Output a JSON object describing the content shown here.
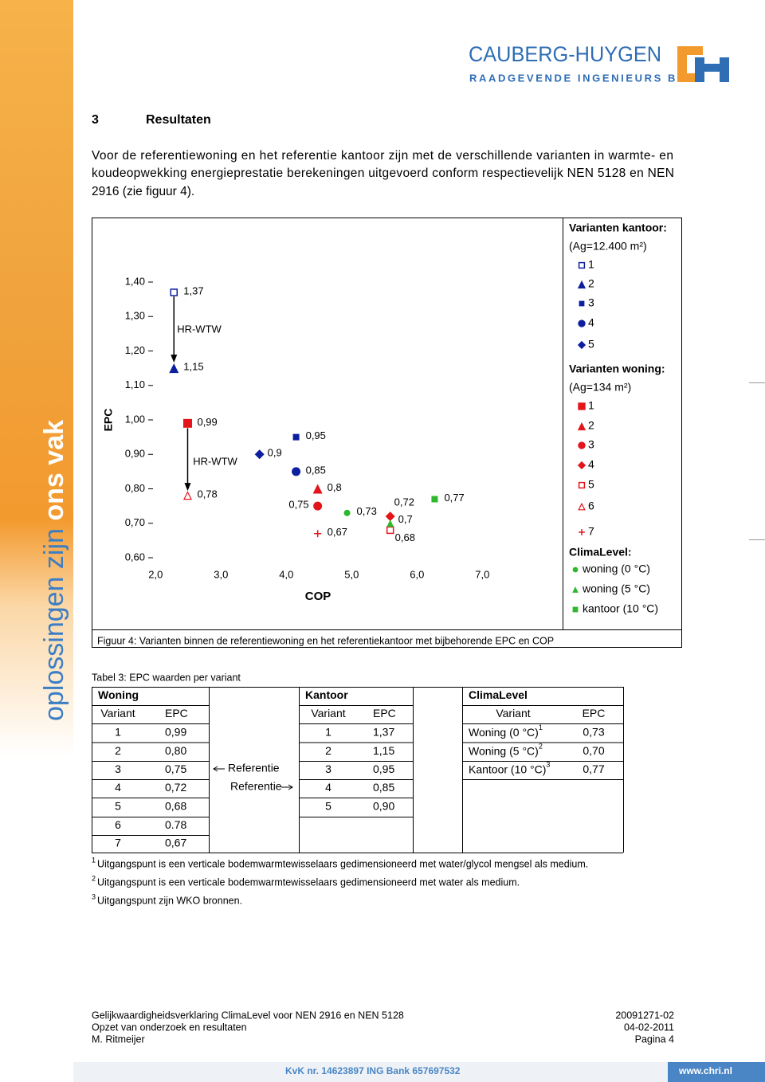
{
  "header": {
    "company": "CAUBERG-HUYGEN",
    "tagline": "RAADGEVENDE INGENIEURS BV"
  },
  "sidebar": {
    "slogan": "oplossingen zijn ",
    "slogan_bold": "ons vak"
  },
  "section": {
    "number": "3",
    "title": "Resultaten"
  },
  "paragraph": [
    "Voor de referentiewoning en het referentie kantoor zijn met de verschillende varianten in warmte- en",
    "koudeopwekking energieprestatie berekeningen uitgevoerd conform respectievelijk NEN 5128 en NEN",
    "2916 (zie figuur 4)."
  ],
  "chart_data": {
    "type": "scatter",
    "x_label": "COP",
    "y_label": "EPC",
    "xlim": [
      1.85,
      7.1
    ],
    "ylim": [
      0.6,
      1.4
    ],
    "xticks": [
      {
        "value": 2,
        "label": "2,0"
      },
      {
        "value": 3,
        "label": "3,0"
      },
      {
        "value": 4,
        "label": "4,0"
      },
      {
        "value": 5,
        "label": "5,0"
      },
      {
        "value": 6,
        "label": "6,0"
      },
      {
        "value": 7,
        "label": "7,0"
      }
    ],
    "yticks": [
      {
        "value": 0.6,
        "label": "0,60"
      },
      {
        "value": 0.7,
        "label": "0,70"
      },
      {
        "value": 0.8,
        "label": "0,80"
      },
      {
        "value": 0.9,
        "label": "0,90"
      },
      {
        "value": 1.0,
        "label": "1,00"
      },
      {
        "value": 1.1,
        "label": "1,10"
      },
      {
        "value": 1.2,
        "label": "1,20"
      },
      {
        "value": 1.3,
        "label": "1,30"
      },
      {
        "value": 1.4,
        "label": "1,40"
      }
    ],
    "annotations": [
      "HR-WTW",
      "HR-WTW"
    ],
    "groups": [
      {
        "title": "Varianten kantoor:",
        "area": "(Ag=12.400 m²)",
        "series": [
          {
            "name": "1",
            "marker": "square-open",
            "color": "#0d1f9e",
            "x": [
              2.28
            ],
            "values": [
              1.37
            ],
            "value_labels": [
              "1,37"
            ]
          },
          {
            "name": "2",
            "marker": "triangle",
            "color": "#0d1f9e",
            "x": [
              2.28
            ],
            "values": [
              1.15
            ],
            "value_labels": [
              "1,15"
            ]
          },
          {
            "name": "3",
            "marker": "square-small",
            "color": "#0d1f9e",
            "x": [
              4.15
            ],
            "values": [
              0.95
            ],
            "value_labels": [
              "0,95"
            ]
          },
          {
            "name": "4",
            "marker": "circle",
            "color": "#0d1f9e",
            "x": [
              4.15
            ],
            "values": [
              0.85
            ],
            "value_labels": [
              "0,85"
            ]
          },
          {
            "name": "5",
            "marker": "diamond",
            "color": "#0d1f9e",
            "x": [
              3.59
            ],
            "values": [
              0.9
            ],
            "value_labels": [
              "0,9"
            ]
          }
        ]
      },
      {
        "title": "Varianten woning:",
        "area": "(Ag=134 m²)",
        "series": [
          {
            "name": "1",
            "marker": "square",
            "color": "#e3151a",
            "x": [
              2.49
            ],
            "values": [
              0.99
            ],
            "value_labels": [
              "0,99"
            ]
          },
          {
            "name": "2",
            "marker": "triangle",
            "color": "#e3151a",
            "x": [
              4.48
            ],
            "values": [
              0.8
            ],
            "value_labels": [
              "0,8"
            ]
          },
          {
            "name": "3",
            "marker": "circle",
            "color": "#e3151a",
            "x": [
              4.48
            ],
            "values": [
              0.75
            ],
            "value_labels": [
              "0,75"
            ]
          },
          {
            "name": "4",
            "marker": "diamond",
            "color": "#e3151a",
            "x": [
              5.59
            ],
            "values": [
              0.72
            ],
            "value_labels": [
              "0,72"
            ]
          },
          {
            "name": "5",
            "marker": "square-open",
            "color": "#e3151a",
            "x": [
              5.59
            ],
            "values": [
              0.68
            ],
            "value_labels": [
              "0,68"
            ]
          },
          {
            "name": "6",
            "marker": "triangle-open",
            "color": "#e3151a",
            "x": [
              2.49
            ],
            "values": [
              0.78
            ],
            "value_labels": [
              "0,78"
            ]
          },
          {
            "name": "7",
            "marker": "plus",
            "color": "#e3151a",
            "x": [
              4.48
            ],
            "values": [
              0.67
            ],
            "value_labels": [
              "0,67"
            ]
          }
        ]
      },
      {
        "title": "ClimaLevel:",
        "series": [
          {
            "name": "woning (0 °C)",
            "marker": "circle-small",
            "color": "#2db82d",
            "x": [
              4.93
            ],
            "values": [
              0.73
            ],
            "value_labels": [
              "0,73"
            ]
          },
          {
            "name": "woning (5 °C)",
            "marker": "triangle-small",
            "color": "#2db82d",
            "x": [
              5.59
            ],
            "values": [
              0.7
            ],
            "value_labels": [
              "0,7"
            ]
          },
          {
            "name": "kantoor (10 °C)",
            "marker": "square-small",
            "color": "#2db82d",
            "x": [
              6.27
            ],
            "values": [
              0.77
            ],
            "value_labels": [
              "0,77"
            ]
          }
        ]
      }
    ]
  },
  "caption": "Figuur 4: Varianten binnen de referentiewoning en het referentiekantoor met bijbehorende EPC en COP",
  "table": {
    "caption": "Tabel 3: EPC waarden per variant",
    "groups": [
      "Woning",
      "Kantoor",
      "ClimaLevel"
    ],
    "columns": [
      "Variant",
      "EPC",
      "Variant",
      "EPC",
      "Variant",
      "EPC"
    ],
    "woning": [
      [
        "1",
        "0,99"
      ],
      [
        "2",
        "0,80"
      ],
      [
        "3",
        "0,75"
      ],
      [
        "4",
        "0,72"
      ],
      [
        "5",
        "0,68"
      ],
      [
        "6",
        "0.78"
      ],
      [
        "7",
        "0,67"
      ]
    ],
    "kantoor": [
      [
        "1",
        "1,37"
      ],
      [
        "2",
        "1,15"
      ],
      [
        "3",
        "0,95"
      ],
      [
        "4",
        "0,85"
      ],
      [
        "5",
        "0,90"
      ]
    ],
    "climalevel": [
      {
        "variant": "Woning (0 °C)",
        "note": "1",
        "epc": "0,73"
      },
      {
        "variant": "Woning (5 °C)",
        "note": "2",
        "epc": "0,70"
      },
      {
        "variant": "Kantoor (10 °C)",
        "note": "3",
        "epc": "0,77"
      }
    ],
    "reference_left": "Referentie",
    "reference_right": "Referentie"
  },
  "footnotes": [
    {
      "mark": "1",
      "text": "Uitgangspunt is een verticale bodemwarmtewisselaars gedimensioneerd met water/glycol mengsel als medium."
    },
    {
      "mark": "2",
      "text": "Uitgangspunt is een verticale bodemwarmtewisselaars gedimensioneerd met water als medium."
    },
    {
      "mark": "3",
      "text": "Uitgangspunt zijn WKO bronnen."
    }
  ],
  "footer": {
    "left": [
      "Gelijkwaardigheidsverklaring ClimaLevel voor NEN 2916 en NEN 5128",
      "Opzet van onderzoek en resultaten",
      "M. Ritmeijer"
    ],
    "right": [
      "20091271-02",
      "04-02-2011",
      "Pagina 4"
    ],
    "bar": "KvK nr. 14623897 ING Bank 657697532",
    "website": "www.chri.nl"
  }
}
